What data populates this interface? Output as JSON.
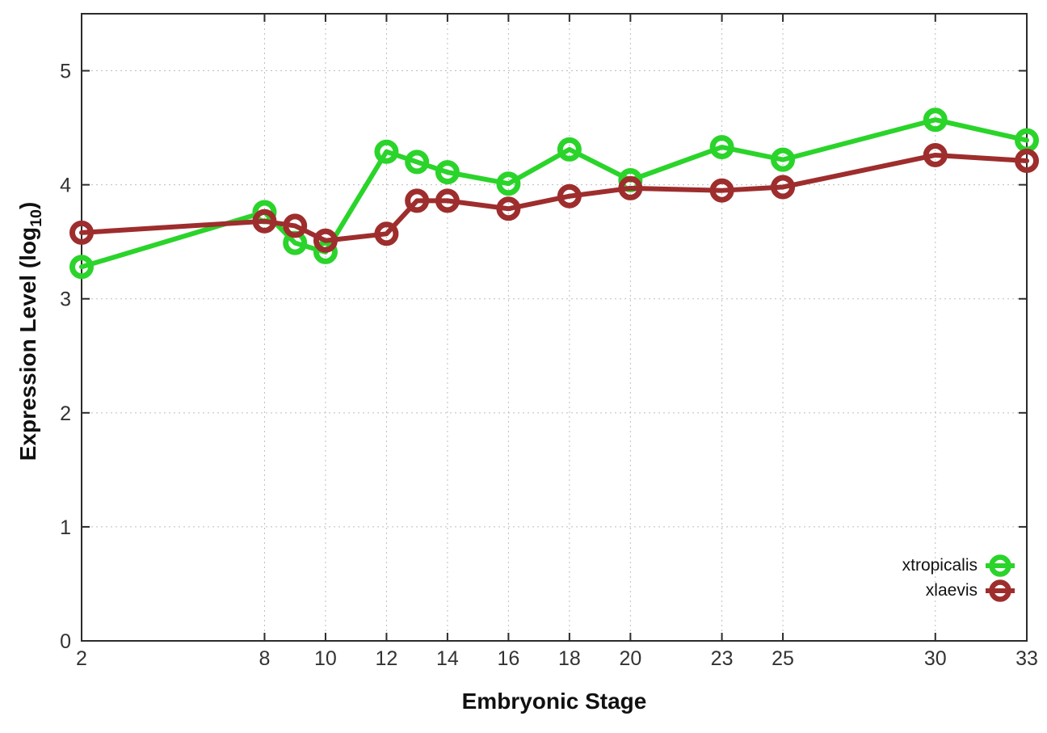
{
  "chart_data": {
    "type": "line",
    "xlabel": "Embryonic Stage",
    "ylabel": {
      "prefix": "Expression Level (log",
      "sub": "10",
      "suffix": ")"
    },
    "x": [
      2,
      8,
      9,
      10,
      12,
      13,
      14,
      16,
      18,
      20,
      23,
      25,
      30,
      33
    ],
    "series": [
      {
        "name": "xtropicalis",
        "color": "#2ad42a",
        "values": [
          3.28,
          3.76,
          3.49,
          3.41,
          4.29,
          4.2,
          4.11,
          4.01,
          4.31,
          4.04,
          4.33,
          4.22,
          4.57,
          4.39
        ]
      },
      {
        "name": "xlaevis",
        "color": "#9e2d2d",
        "values": [
          3.58,
          3.68,
          3.64,
          3.51,
          3.57,
          3.86,
          3.86,
          3.79,
          3.9,
          3.97,
          3.95,
          3.98,
          4.26,
          4.21
        ]
      }
    ],
    "xticks": [
      2,
      8,
      10,
      12,
      14,
      16,
      18,
      20,
      23,
      25,
      30,
      33
    ],
    "yticks": [
      0,
      1,
      2,
      3,
      4,
      5
    ],
    "xlim": [
      2,
      33
    ],
    "ylim": [
      0,
      5.5
    ],
    "grid": true,
    "legend_position": "bottom-right",
    "style": {
      "border_color": "#2b2b2b",
      "grid_color": "#bdbdbd",
      "tick_text_color": "#333333",
      "background": "#ffffff",
      "line_width": 6,
      "marker_radius": 11.5,
      "marker_stroke": 7
    }
  }
}
